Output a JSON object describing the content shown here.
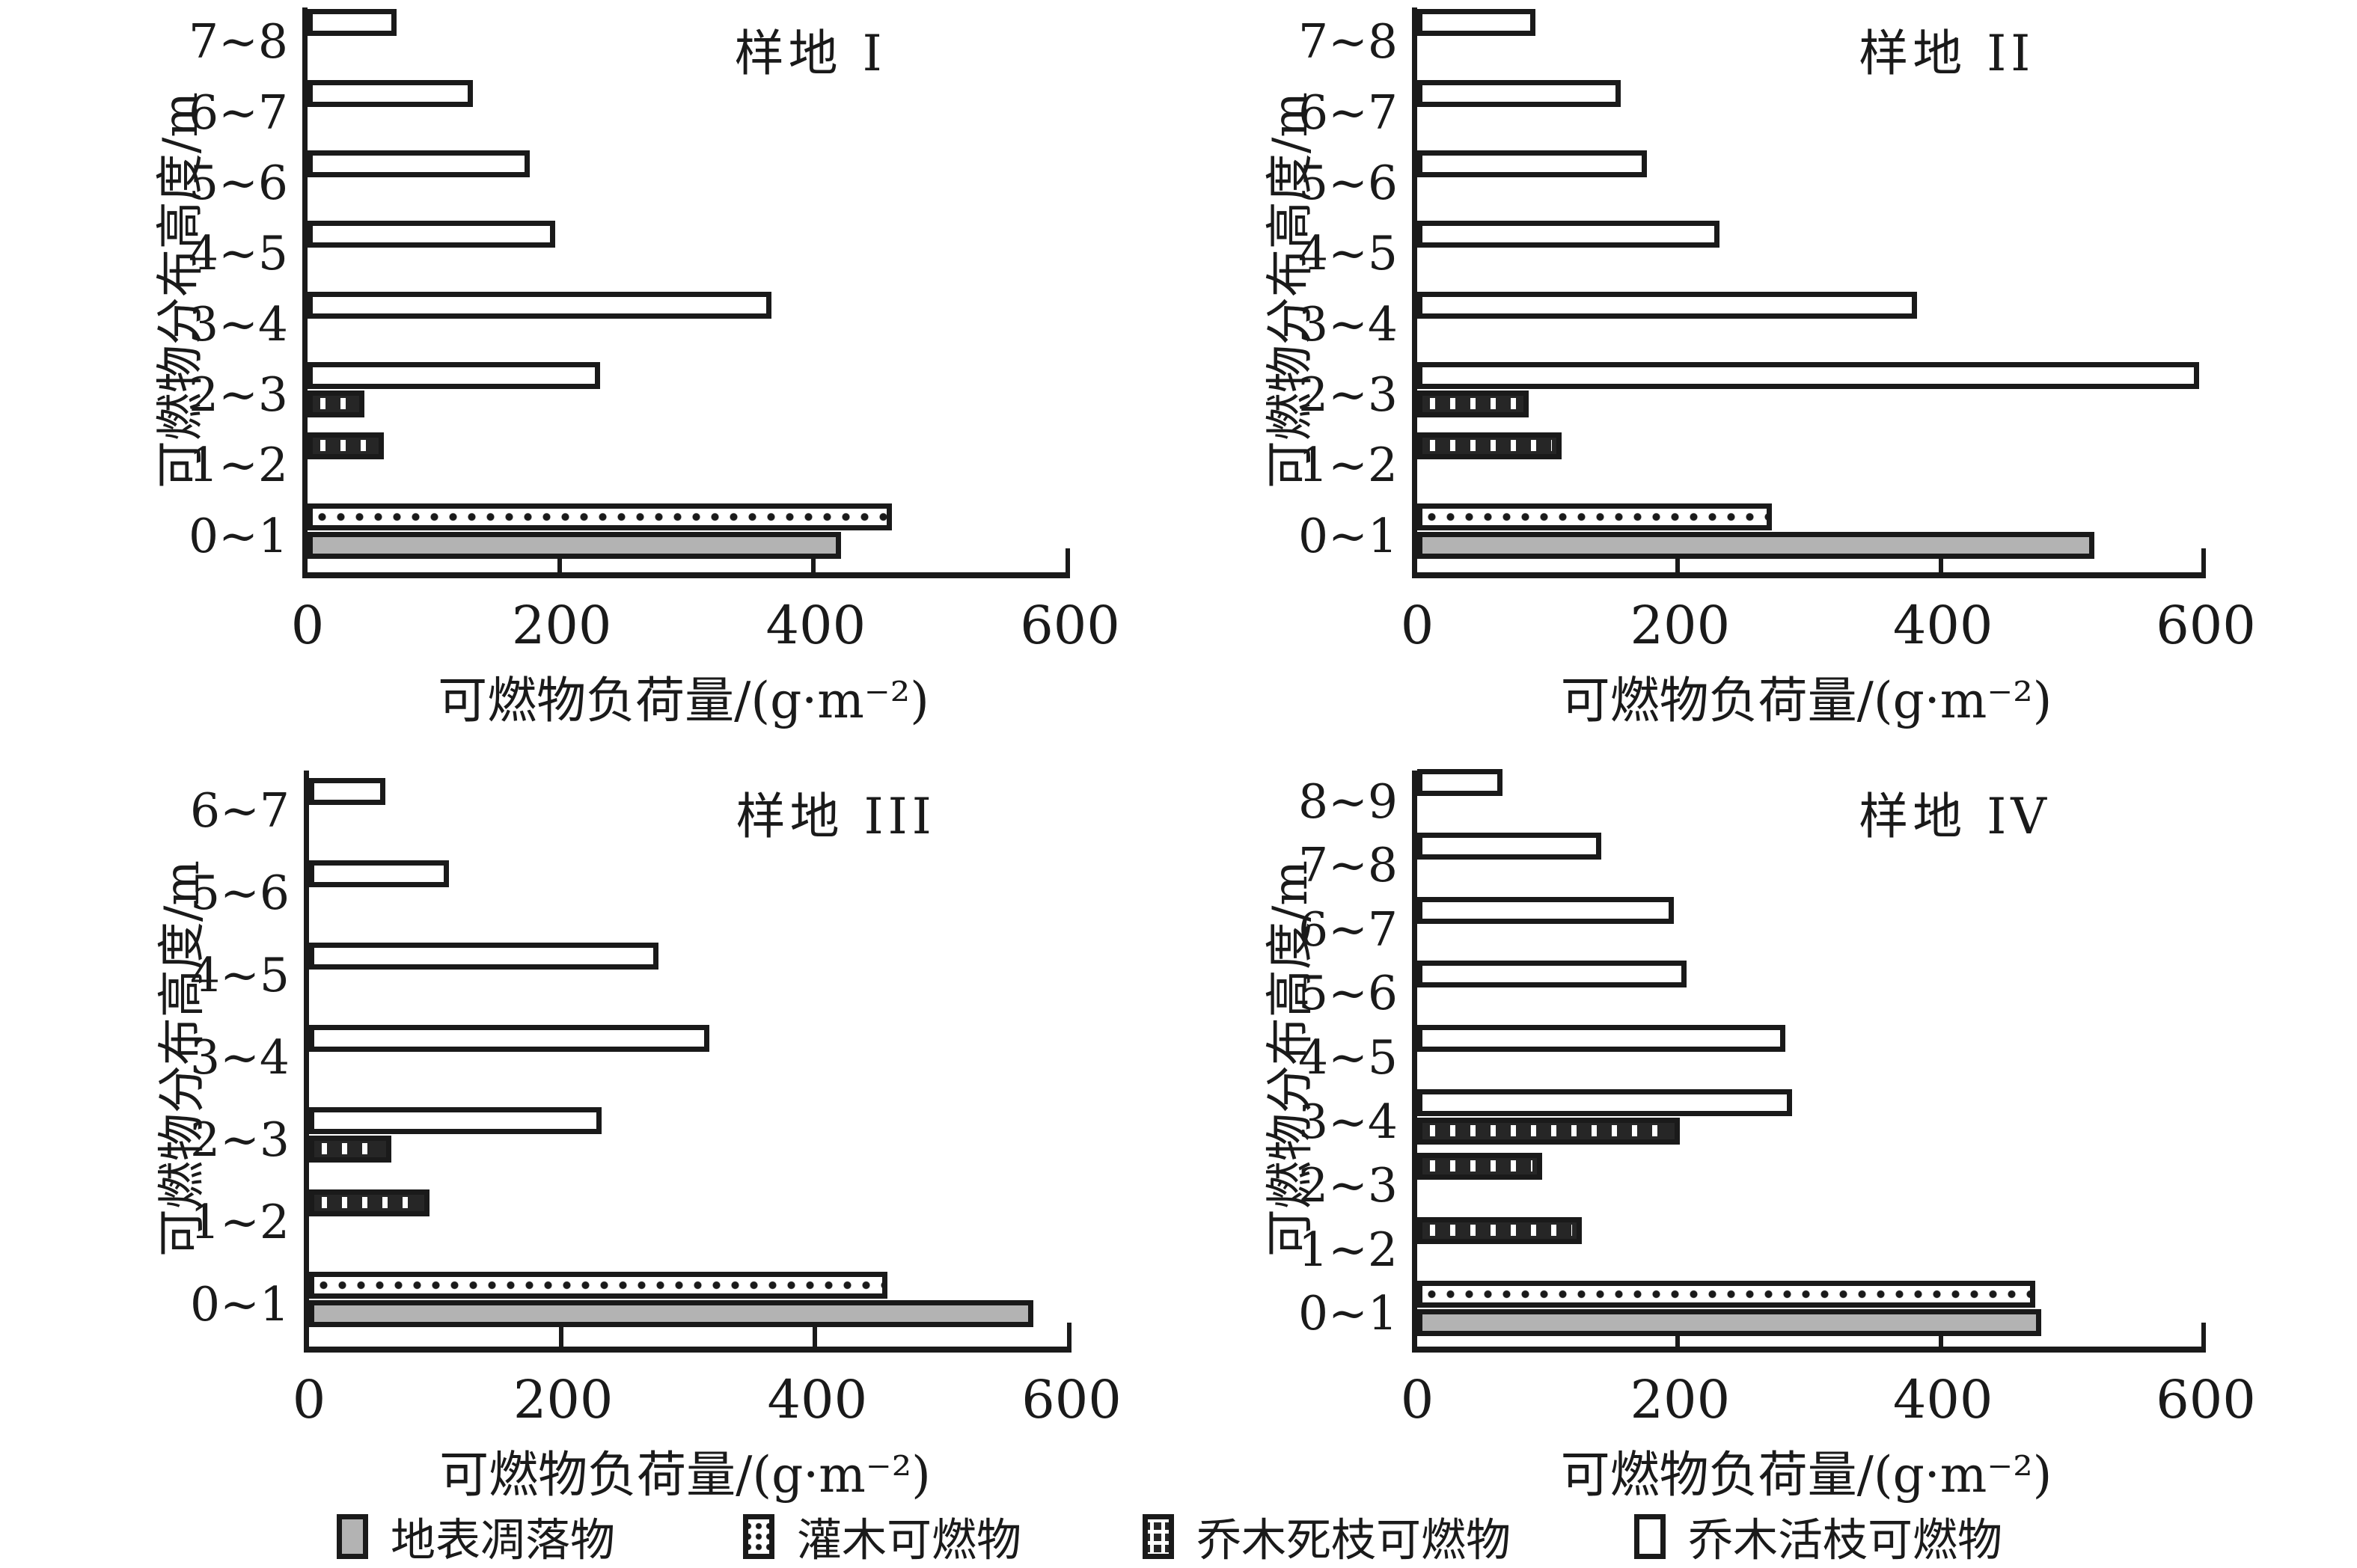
{
  "colors": {
    "ink": "#1a1a1a",
    "background": "#ffffff",
    "litter_fill": "#b3b3b3",
    "live_fill": "#ffffff"
  },
  "axis": {
    "xlabel": "可燃物负荷量/(g·m⁻²)",
    "ylabel": "可燃物分布高度/m",
    "x_ticks": [
      "0",
      "200",
      "400",
      "600"
    ],
    "xlim": [
      0,
      600
    ],
    "grid": "off"
  },
  "legend": {
    "position": "bottom",
    "items": [
      {
        "key": "litter",
        "label": "地表凋落物"
      },
      {
        "key": "shrub",
        "label": "灌木可燃物"
      },
      {
        "key": "dead",
        "label": "乔木死枝可燃物"
      },
      {
        "key": "live",
        "label": "乔木活枝可燃物"
      }
    ]
  },
  "chart_data": [
    {
      "type": "bar",
      "orientation": "horizontal",
      "title": "样地 I",
      "xlabel": "可燃物负荷量/(g·m⁻²)",
      "ylabel": "可燃物分布高度/m",
      "xlim": [
        0,
        600
      ],
      "categories": [
        "0~1",
        "1~2",
        "2~3",
        "3~4",
        "4~5",
        "5~6",
        "6~7",
        "7~8"
      ],
      "series": [
        {
          "key": "litter",
          "name": "地表凋落物",
          "values": [
            420,
            0,
            0,
            0,
            0,
            0,
            0,
            0
          ]
        },
        {
          "key": "shrub",
          "name": "灌木可燃物",
          "values": [
            460,
            0,
            0,
            0,
            0,
            0,
            0,
            0
          ]
        },
        {
          "key": "dead",
          "name": "乔木死枝可燃物",
          "values": [
            0,
            60,
            45,
            0,
            0,
            0,
            0,
            0
          ]
        },
        {
          "key": "live",
          "name": "乔木活枝可燃物",
          "values": [
            0,
            0,
            230,
            365,
            195,
            175,
            130,
            70
          ]
        }
      ]
    },
    {
      "type": "bar",
      "orientation": "horizontal",
      "title": "样地 II",
      "xlabel": "可燃物负荷量/(g·m⁻²)",
      "ylabel": "可燃物分布高度/m",
      "xlim": [
        0,
        600
      ],
      "categories": [
        "0~1",
        "1~2",
        "2~3",
        "3~4",
        "4~5",
        "5~6",
        "6~7",
        "7~8"
      ],
      "series": [
        {
          "key": "litter",
          "name": "地表凋落物",
          "values": [
            515,
            0,
            0,
            0,
            0,
            0,
            0,
            0
          ]
        },
        {
          "key": "shrub",
          "name": "灌木可燃物",
          "values": [
            270,
            0,
            0,
            0,
            0,
            0,
            0,
            0
          ]
        },
        {
          "key": "dead",
          "name": "乔木死枝可燃物",
          "values": [
            0,
            110,
            85,
            0,
            0,
            0,
            0,
            0
          ]
        },
        {
          "key": "live",
          "name": "乔木活枝可燃物",
          "values": [
            0,
            0,
            595,
            380,
            230,
            175,
            155,
            90
          ]
        }
      ]
    },
    {
      "type": "bar",
      "orientation": "horizontal",
      "title": "样地 III",
      "xlabel": "可燃物负荷量/(g·m⁻²)",
      "ylabel": "可燃物分布高度/m",
      "xlim": [
        0,
        600
      ],
      "categories": [
        "0~1",
        "1~2",
        "2~3",
        "3~4",
        "4~5",
        "5~6",
        "6~7"
      ],
      "series": [
        {
          "key": "litter",
          "name": "地表凋落物",
          "values": [
            570,
            0,
            0,
            0,
            0,
            0,
            0
          ]
        },
        {
          "key": "shrub",
          "name": "灌木可燃物",
          "values": [
            455,
            0,
            0,
            0,
            0,
            0,
            0
          ]
        },
        {
          "key": "dead",
          "name": "乔木死枝可燃物",
          "values": [
            0,
            95,
            65,
            0,
            0,
            0,
            0
          ]
        },
        {
          "key": "live",
          "name": "乔木活枝可燃物",
          "values": [
            0,
            0,
            230,
            315,
            275,
            110,
            60
          ]
        }
      ]
    },
    {
      "type": "bar",
      "orientation": "horizontal",
      "title": "样地 IV",
      "xlabel": "可燃物负荷量/(g·m⁻²)",
      "ylabel": "可燃物分布高度/m",
      "xlim": [
        0,
        600
      ],
      "categories": [
        "0~1",
        "1~2",
        "2~3",
        "3~4",
        "4~5",
        "5~6",
        "6~7",
        "7~8",
        "8~9"
      ],
      "series": [
        {
          "key": "litter",
          "name": "地表凋落物",
          "values": [
            475,
            0,
            0,
            0,
            0,
            0,
            0,
            0,
            0
          ]
        },
        {
          "key": "shrub",
          "name": "灌木可燃物",
          "values": [
            470,
            0,
            0,
            0,
            0,
            0,
            0,
            0,
            0
          ]
        },
        {
          "key": "dead",
          "name": "乔木死枝可燃物",
          "values": [
            0,
            125,
            95,
            200,
            0,
            0,
            0,
            0,
            0
          ]
        },
        {
          "key": "live",
          "name": "乔木活枝可燃物",
          "values": [
            0,
            0,
            0,
            285,
            280,
            205,
            195,
            140,
            65
          ]
        }
      ]
    }
  ]
}
